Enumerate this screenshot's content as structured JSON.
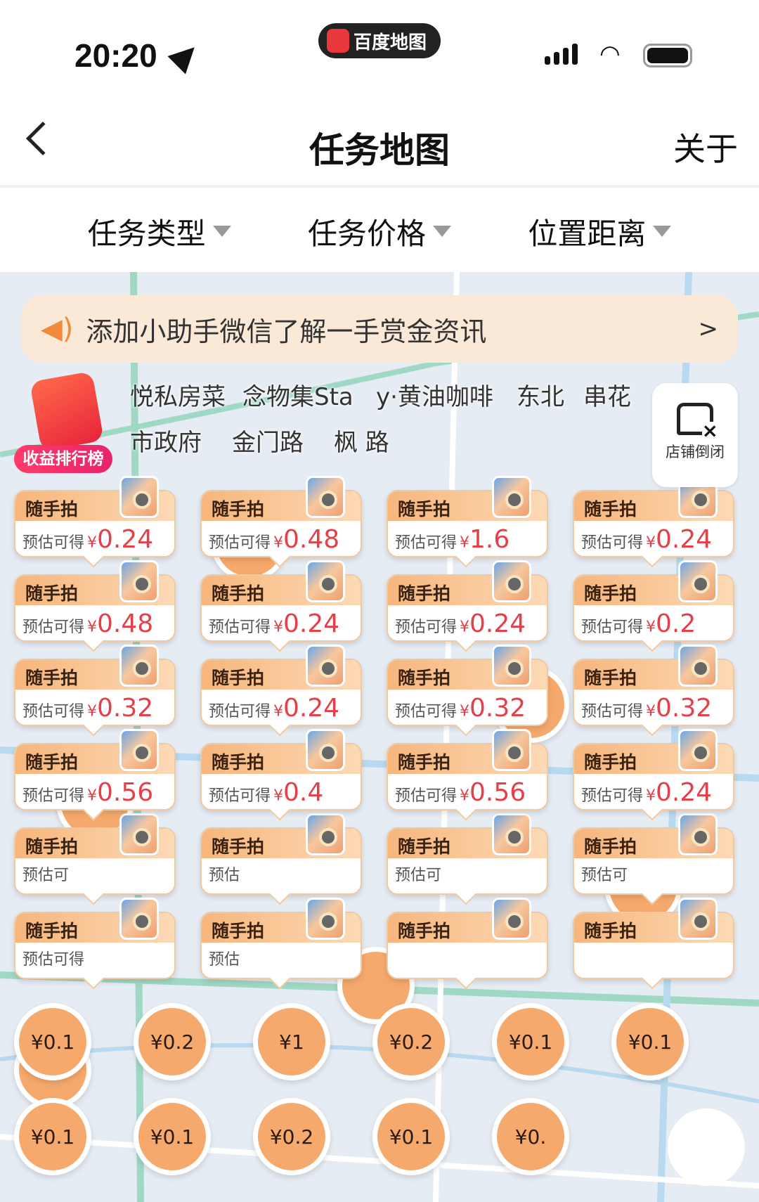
{
  "status_bar": {
    "time": "20:20",
    "app_pill": "百度地图",
    "app_logo": "du"
  },
  "nav": {
    "title": "任务地图",
    "right": "关于"
  },
  "filters": [
    {
      "label": "任务类型"
    },
    {
      "label": "任务价格"
    },
    {
      "label": "位置距离"
    }
  ],
  "banner": {
    "text": "添加小助手微信了解一手赏金资讯",
    "arrow": ">"
  },
  "ranking": {
    "label": "收益排行榜"
  },
  "shop_toggle": {
    "label": "店铺倒闭",
    "icon": "store-closed-icon"
  },
  "colors": {
    "card_value": "#e5404a",
    "marker": "#f6a96c",
    "banner_bg": "#fbe9d8"
  },
  "task_card": {
    "title": "随手拍",
    "estimate_label": "预估可得",
    "currency": "¥"
  },
  "partial_cards": [
    {
      "title": "随手拍",
      "estimate_label": "预估可"
    },
    {
      "title": "随手拍",
      "estimate_label": "预估"
    },
    {
      "title": "随手拍",
      "estimate_label": "预估可"
    },
    {
      "title": "随手拍",
      "estimate_label": "预估可"
    },
    {
      "title": "随手拍",
      "estimate_label": "预估可得"
    },
    {
      "title": "随手拍",
      "estimate_label": "预估"
    },
    {
      "title": "随手拍",
      "estimate_label": ""
    },
    {
      "title": "随手拍",
      "estimate_label": ""
    }
  ],
  "cards": [
    {
      "value": "0.24"
    },
    {
      "value": "0.48"
    },
    {
      "value": "1.6"
    },
    {
      "value": "0.24"
    },
    {
      "value": "0.48"
    },
    {
      "value": "0.24"
    },
    {
      "value": "0.24"
    },
    {
      "value": "0.2"
    },
    {
      "value": "0.32"
    },
    {
      "value": "0.24"
    },
    {
      "value": "0.32"
    },
    {
      "value": "0.32"
    },
    {
      "value": "0.56"
    },
    {
      "value": "0.4"
    },
    {
      "value": "0.56"
    },
    {
      "value": "0.24"
    }
  ],
  "markers": [
    {
      "label": "¥0.1"
    },
    {
      "label": "¥0.2"
    },
    {
      "label": "¥1"
    },
    {
      "label": "¥0.2"
    },
    {
      "label": "¥0.1"
    },
    {
      "label": "¥0.1"
    },
    {
      "label": "¥0.1"
    },
    {
      "label": "¥0.1"
    },
    {
      "label": "¥0.2"
    },
    {
      "label": "¥0.1"
    },
    {
      "label": "¥0."
    }
  ],
  "map_labels": [
    {
      "text": "悦私房菜"
    },
    {
      "text": "念物集Sta"
    },
    {
      "text": "y·黄油咖啡"
    },
    {
      "text": "东北"
    },
    {
      "text": "串花"
    },
    {
      "text": "市政府"
    },
    {
      "text": "金门路"
    },
    {
      "text": "枫 路"
    }
  ]
}
